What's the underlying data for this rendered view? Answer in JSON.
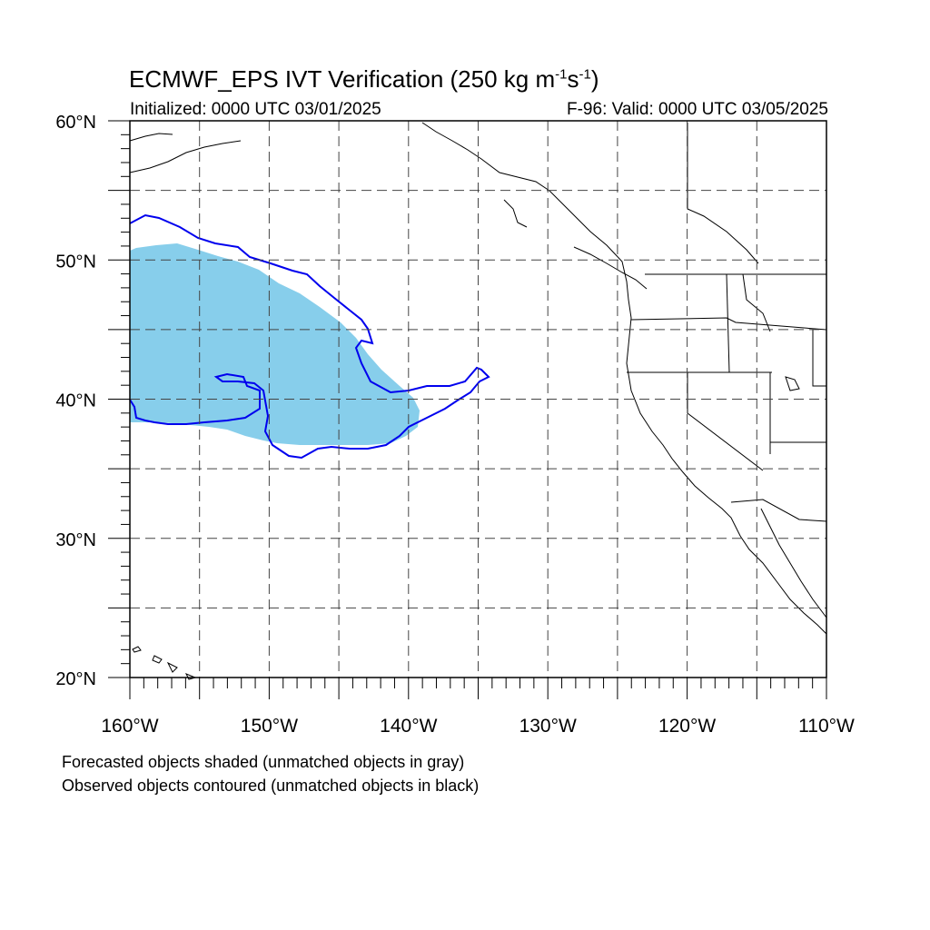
{
  "title": {
    "main": "ECMWF_EPS IVT Verification (250 kg m",
    "sup1": "-1",
    "mid": "s",
    "sup2": "-1",
    "end": ")"
  },
  "subtitle": {
    "initialized": "Initialized: 0000 UTC 03/01/2025",
    "valid": "F-96: Valid: 0000 UTC 03/05/2025"
  },
  "map": {
    "lon_range": [
      -160,
      -110
    ],
    "lat_range": [
      20,
      60
    ],
    "lat_labels": [
      "20°N",
      "30°N",
      "40°N",
      "50°N",
      "60°N"
    ],
    "lon_labels": [
      "160°W",
      "150°W",
      "140°W",
      "130°W",
      "120°W",
      "110°W"
    ],
    "gridlines": "dashed",
    "forecast_fill_color": "#87ceeb",
    "observed_contour_color": "#0000ee"
  },
  "notes": [
    "Forecasted objects shaded (unmatched objects in gray)",
    "Observed objects contoured (unmatched objects in black)"
  ]
}
